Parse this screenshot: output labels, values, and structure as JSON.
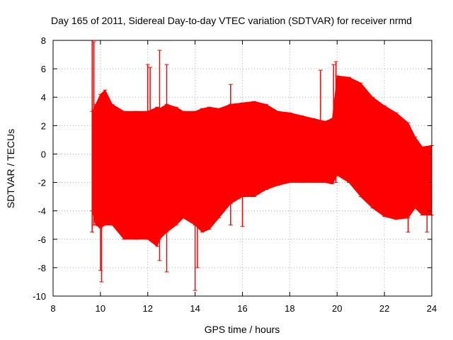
{
  "chart_data": {
    "type": "line",
    "title": "Day 165 of 2011, Sidereal Day-to-day VTEC variation (SDTVAR) for receiver nrmd",
    "xlabel": "GPS time / hours",
    "ylabel": "SDTVAR / TECUs",
    "xlim": [
      8,
      24
    ],
    "ylim": [
      -10,
      8
    ],
    "xticks": [
      8,
      10,
      12,
      14,
      16,
      18,
      20,
      22,
      24
    ],
    "yticks": [
      -10,
      -8,
      -6,
      -4,
      -2,
      0,
      2,
      4,
      6,
      8
    ],
    "grid": true,
    "series": [
      {
        "name": "SDTVAR",
        "color": "#ff0000",
        "marker": "plus",
        "envelope_x": [
          9.65,
          9.8,
          10.0,
          10.2,
          10.5,
          11.0,
          11.5,
          12.0,
          12.4,
          12.5,
          12.8,
          13.2,
          13.5,
          14.0,
          14.3,
          14.6,
          15.0,
          15.5,
          16.0,
          16.5,
          17.0,
          17.5,
          18.0,
          18.5,
          19.0,
          19.5,
          19.8,
          20.0,
          20.5,
          21.0,
          21.5,
          22.0,
          22.5,
          23.0,
          23.3,
          23.6,
          24.0
        ],
        "envelope_upper": [
          3.0,
          3.5,
          4.2,
          4.5,
          3.5,
          3.0,
          3.0,
          3.0,
          3.3,
          3.2,
          3.5,
          3.3,
          3.0,
          3.0,
          3.2,
          3.3,
          3.2,
          3.5,
          3.6,
          3.7,
          3.5,
          3.0,
          2.9,
          2.7,
          2.5,
          2.3,
          2.5,
          5.5,
          5.4,
          5.0,
          4.0,
          3.4,
          2.9,
          2.2,
          1.2,
          0.5,
          0.6
        ],
        "envelope_lower": [
          -4.0,
          -5.0,
          -5.2,
          -5.0,
          -5.0,
          -6.0,
          -6.0,
          -6.0,
          -6.5,
          -6.0,
          -5.5,
          -5.0,
          -4.5,
          -5.0,
          -5.5,
          -5.3,
          -4.5,
          -3.5,
          -3.0,
          -3.0,
          -2.5,
          -2.2,
          -2.0,
          -2.0,
          -2.0,
          -2.0,
          -2.1,
          -1.5,
          -2.0,
          -3.0,
          -3.8,
          -4.4,
          -4.6,
          -4.5,
          -3.8,
          -4.3,
          -4.3
        ],
        "spikes": [
          {
            "x": 9.65,
            "max": 8.0,
            "min": -5.5
          },
          {
            "x": 9.72,
            "max": 7.9,
            "min": -5.0
          },
          {
            "x": 10.0,
            "max": 3.0,
            "min": -8.2
          },
          {
            "x": 10.05,
            "max": 2.5,
            "min": -9.0
          },
          {
            "x": 12.0,
            "max": 6.3,
            "min": -6.0
          },
          {
            "x": 12.1,
            "max": 6.1,
            "min": -6.0
          },
          {
            "x": 12.5,
            "max": 7.3,
            "min": -7.5
          },
          {
            "x": 12.8,
            "max": 6.3,
            "min": -8.3
          },
          {
            "x": 14.0,
            "max": 2.0,
            "min": -9.6
          },
          {
            "x": 14.1,
            "max": 1.0,
            "min": -8.0
          },
          {
            "x": 15.5,
            "max": 4.9,
            "min": -5.0
          },
          {
            "x": 16.0,
            "max": 3.5,
            "min": -5.1
          },
          {
            "x": 19.3,
            "max": 5.9,
            "min": -2.0
          },
          {
            "x": 19.85,
            "max": 6.3,
            "min": -2.0
          },
          {
            "x": 19.95,
            "max": 6.5,
            "min": -2.0
          },
          {
            "x": 23.0,
            "max": 1.5,
            "min": -5.5
          },
          {
            "x": 23.8,
            "max": 0.5,
            "min": -5.5
          }
        ]
      }
    ]
  }
}
